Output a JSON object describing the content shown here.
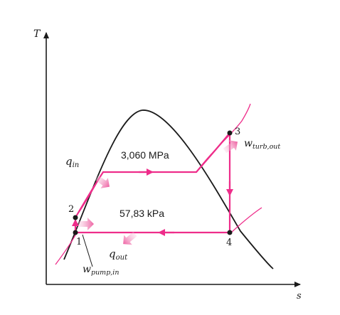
{
  "axes": {
    "y_label": "T",
    "x_label": "s"
  },
  "pressures": {
    "high": "3,060 MPa",
    "low": "57,83 kPa"
  },
  "energy_labels": {
    "q_in": {
      "main": "q",
      "sub": "in"
    },
    "q_out": {
      "main": "q",
      "sub": "out"
    },
    "w_turb": {
      "main": "w",
      "sub": "turb,out"
    },
    "w_pump": {
      "main": "w",
      "sub": "pump,in"
    }
  },
  "states": [
    "1",
    "2",
    "3",
    "4"
  ],
  "colors": {
    "process": "#ee2d8a",
    "dome": "#1a1a1a",
    "arrow_fill": "#f4a7c8"
  }
}
